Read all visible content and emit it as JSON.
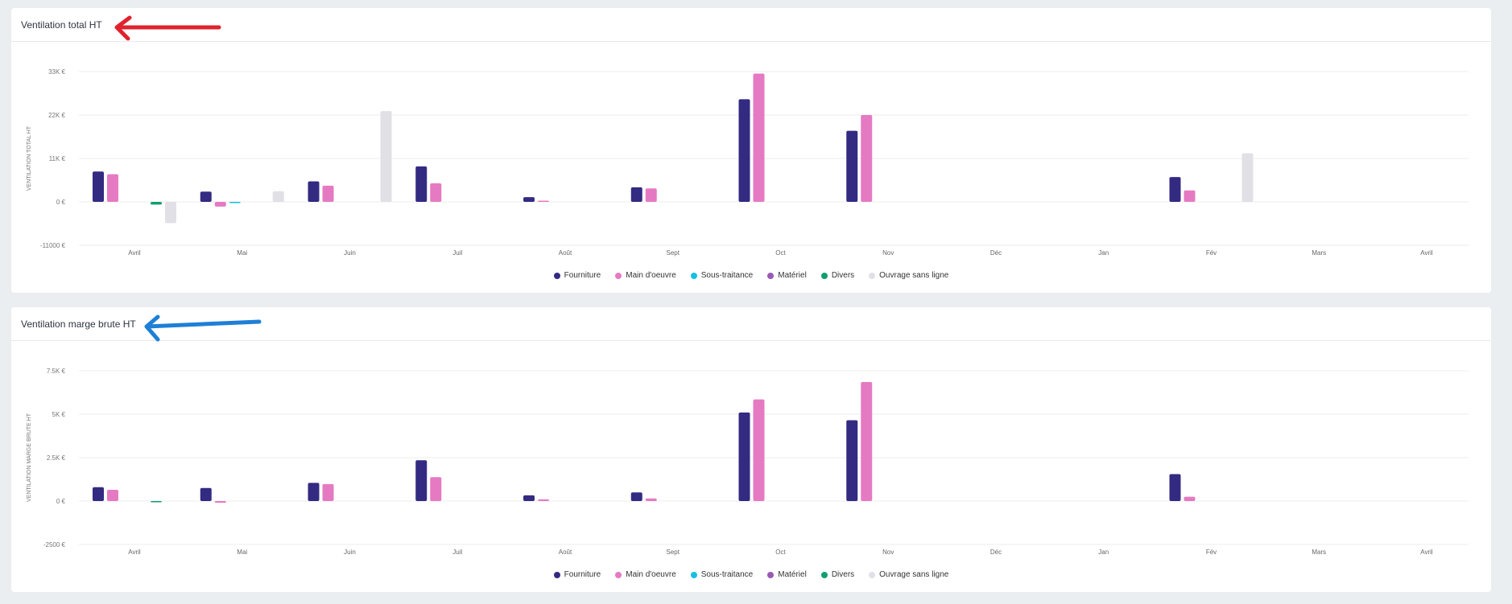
{
  "colors": {
    "Fourniture": "#332a82",
    "Main d'oeuvre": "#e57ac3",
    "Sous-traitance": "#17bfe1",
    "Matériel": "#9b59b6",
    "Divers": "#0f9e6f",
    "Ouvrage sans ligne": "#e0e0e6",
    "arrow_red": "#e0222f",
    "arrow_blue": "#1e7fd6"
  },
  "legend": [
    "Fourniture",
    "Main d'oeuvre",
    "Sous-traitance",
    "Matériel",
    "Divers",
    "Ouvrage sans ligne"
  ],
  "chart_data": [
    {
      "type": "bar",
      "title": "Ventilation total HT",
      "xlabel": "",
      "ylabel": "VENTILATION TOTAL HT",
      "ylim": [
        -11000,
        33000
      ],
      "yticks": [
        33000,
        22000,
        11000,
        0,
        -11000
      ],
      "ytick_labels": [
        "33K €",
        "22K €",
        "11K €",
        "0 €",
        "-11000 €"
      ],
      "categories": [
        "Avril",
        "Mai",
        "Juin",
        "Juil",
        "Août",
        "Sept",
        "Oct",
        "Nov",
        "Déc",
        "Jan",
        "Fév",
        "Mars",
        "Avril"
      ],
      "grid": true,
      "legend_position": "bottom",
      "series": [
        {
          "name": "Fourniture",
          "values": [
            7700,
            2600,
            5200,
            9000,
            1200,
            3700,
            26000,
            18000,
            0,
            0,
            6300,
            0,
            0
          ]
        },
        {
          "name": "Main d'oeuvre",
          "values": [
            7000,
            -1200,
            4100,
            4700,
            300,
            3400,
            32500,
            22000,
            0,
            0,
            2900,
            0,
            0
          ]
        },
        {
          "name": "Sous-traitance",
          "values": [
            0,
            -200,
            0,
            0,
            0,
            0,
            0,
            0,
            0,
            0,
            0,
            0,
            0
          ]
        },
        {
          "name": "Matériel",
          "values": [
            0,
            0,
            0,
            0,
            0,
            0,
            0,
            0,
            0,
            0,
            0,
            0,
            0
          ]
        },
        {
          "name": "Divers",
          "values": [
            -700,
            0,
            0,
            0,
            0,
            0,
            0,
            0,
            0,
            0,
            0,
            0,
            0
          ]
        },
        {
          "name": "Ouvrage sans ligne",
          "values": [
            -5400,
            2700,
            23000,
            0,
            0,
            0,
            0,
            0,
            0,
            0,
            12300,
            0,
            0
          ]
        }
      ]
    },
    {
      "type": "bar",
      "title": "Ventilation marge brute HT",
      "xlabel": "",
      "ylabel": "VENTILATION MARGE BRUTE HT",
      "ylim": [
        -2500,
        7500
      ],
      "yticks": [
        7500,
        5000,
        2500,
        0,
        -2500
      ],
      "ytick_labels": [
        "7.5K €",
        "5K €",
        "2.5K €",
        "0 €",
        "-2500 €"
      ],
      "categories": [
        "Avril",
        "Mai",
        "Juin",
        "Juil",
        "Août",
        "Sept",
        "Oct",
        "Nov",
        "Déc",
        "Jan",
        "Fév",
        "Mars",
        "Avril"
      ],
      "grid": true,
      "legend_position": "bottom",
      "series": [
        {
          "name": "Fourniture",
          "values": [
            800,
            750,
            1050,
            2350,
            330,
            500,
            5100,
            4650,
            0,
            0,
            1550,
            0,
            0
          ]
        },
        {
          "name": "Main d'oeuvre",
          "values": [
            650,
            -100,
            980,
            1380,
            100,
            150,
            5850,
            6850,
            0,
            0,
            250,
            0,
            0
          ]
        },
        {
          "name": "Sous-traitance",
          "values": [
            0,
            0,
            0,
            0,
            0,
            0,
            0,
            0,
            0,
            0,
            0,
            0,
            0
          ]
        },
        {
          "name": "Matériel",
          "values": [
            0,
            0,
            0,
            0,
            0,
            0,
            0,
            0,
            0,
            0,
            0,
            0,
            0
          ]
        },
        {
          "name": "Divers",
          "values": [
            -50,
            0,
            0,
            0,
            0,
            0,
            0,
            0,
            0,
            0,
            0,
            0,
            0
          ]
        },
        {
          "name": "Ouvrage sans ligne",
          "values": [
            0,
            0,
            0,
            0,
            0,
            0,
            0,
            0,
            0,
            0,
            0,
            0,
            0
          ]
        }
      ]
    }
  ]
}
